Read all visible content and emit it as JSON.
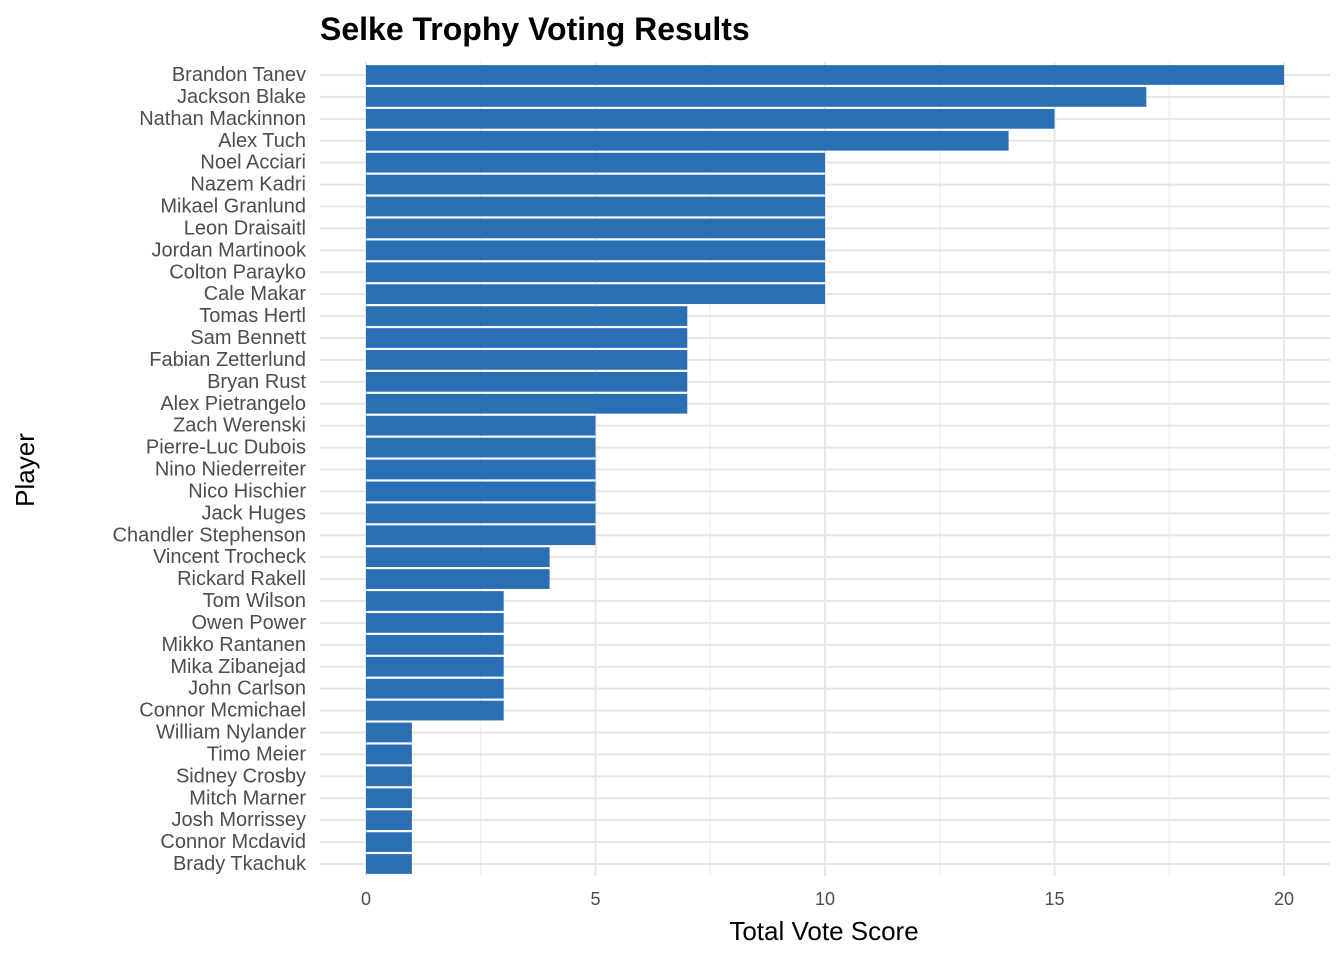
{
  "chart_data": {
    "type": "bar",
    "orientation": "horizontal",
    "title": "Selke Trophy Voting Results",
    "xlabel": "Total Vote Score",
    "ylabel": "Player",
    "xlim": [
      0,
      20
    ],
    "xticks": [
      0,
      5,
      10,
      15,
      20
    ],
    "grid": true,
    "bar_color": "#2a6fb3",
    "categories": [
      "Brandon Tanev",
      "Jackson Blake",
      "Nathan Mackinnon",
      "Alex Tuch",
      "Noel Acciari",
      "Nazem Kadri",
      "Mikael Granlund",
      "Leon Draisaitl",
      "Jordan Martinook",
      "Colton Parayko",
      "Cale Makar",
      "Tomas Hertl",
      "Sam Bennett",
      "Fabian Zetterlund",
      "Bryan Rust",
      "Alex Pietrangelo",
      "Zach Werenski",
      "Pierre-Luc Dubois",
      "Nino Niederreiter",
      "Nico Hischier",
      "Jack Huges",
      "Chandler Stephenson",
      "Vincent Trocheck",
      "Rickard Rakell",
      "Tom Wilson",
      "Owen Power",
      "Mikko Rantanen",
      "Mika Zibanejad",
      "John Carlson",
      "Connor Mcmichael",
      "William Nylander",
      "Timo Meier",
      "Sidney Crosby",
      "Mitch Marner",
      "Josh Morrissey",
      "Connor Mcdavid",
      "Brady Tkachuk"
    ],
    "values": [
      20,
      17,
      15,
      14,
      10,
      10,
      10,
      10,
      10,
      10,
      10,
      7,
      7,
      7,
      7,
      7,
      5,
      5,
      5,
      5,
      5,
      5,
      4,
      4,
      3,
      3,
      3,
      3,
      3,
      3,
      1,
      1,
      1,
      1,
      1,
      1,
      1
    ]
  }
}
